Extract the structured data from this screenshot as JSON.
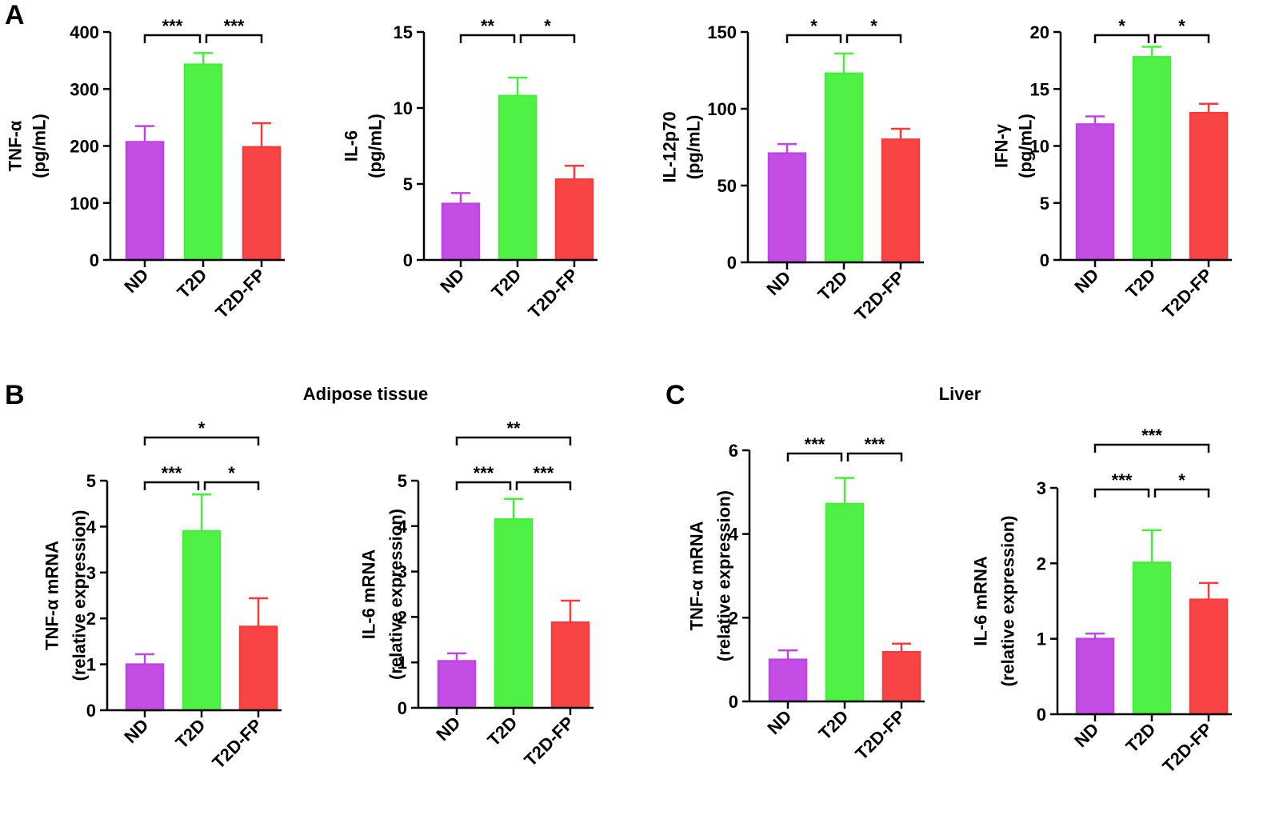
{
  "panels": {
    "A": "A",
    "B": "B",
    "C": "C"
  },
  "section_titles": {
    "adipose": "Adipose tissue",
    "liver": "Liver"
  },
  "colors": {
    "ND": "#c043e4",
    "T2D": "#44f03a",
    "T2D-FP": "#f83a3a",
    "axis": "#000000"
  },
  "chart_data": [
    {
      "type": "bar",
      "panel": "A",
      "categories": [
        "ND",
        "T2D",
        "T2D-FP"
      ],
      "values": [
        207,
        343,
        198
      ],
      "errors": [
        28,
        20,
        42
      ],
      "ylabel_lines": [
        "TNF-α",
        "(pg/mL)"
      ],
      "ylim": [
        0,
        400
      ],
      "yticks": [
        0,
        100,
        200,
        300,
        400
      ],
      "significance": [
        {
          "from": 0,
          "to": 1,
          "label": "***",
          "level": 0
        },
        {
          "from": 1,
          "to": 2,
          "label": "***",
          "level": 0
        }
      ]
    },
    {
      "type": "bar",
      "panel": "A",
      "categories": [
        "ND",
        "T2D",
        "T2D-FP"
      ],
      "values": [
        3.7,
        10.8,
        5.3
      ],
      "errors": [
        0.7,
        1.2,
        0.9
      ],
      "ylabel_lines": [
        "IL-6",
        "(pg/mL)"
      ],
      "ylim": [
        0,
        15
      ],
      "yticks": [
        0,
        5,
        10,
        15
      ],
      "significance": [
        {
          "from": 0,
          "to": 1,
          "label": "**",
          "level": 0
        },
        {
          "from": 1,
          "to": 2,
          "label": "*",
          "level": 0
        }
      ]
    },
    {
      "type": "bar",
      "panel": "A",
      "categories": [
        "ND",
        "T2D",
        "T2D-FP"
      ],
      "values": [
        71,
        123,
        80
      ],
      "errors": [
        6,
        13,
        7
      ],
      "ylabel_lines": [
        "IL-12p70",
        "(pg/mL)"
      ],
      "ylim": [
        0,
        150
      ],
      "yticks": [
        0,
        50,
        100,
        150
      ],
      "significance": [
        {
          "from": 0,
          "to": 1,
          "label": "*",
          "level": 0
        },
        {
          "from": 1,
          "to": 2,
          "label": "*",
          "level": 0
        }
      ]
    },
    {
      "type": "bar",
      "panel": "A",
      "categories": [
        "ND",
        "T2D",
        "T2D-FP"
      ],
      "values": [
        11.9,
        17.8,
        12.9
      ],
      "errors": [
        0.7,
        0.9,
        0.8
      ],
      "ylabel_lines": [
        "IFN-γ",
        "(pg/mL)"
      ],
      "ylim": [
        0,
        20
      ],
      "yticks": [
        0,
        5,
        10,
        15,
        20
      ],
      "significance": [
        {
          "from": 0,
          "to": 1,
          "label": "*",
          "level": 0
        },
        {
          "from": 1,
          "to": 2,
          "label": "*",
          "level": 0
        }
      ]
    },
    {
      "type": "bar",
      "panel": "B",
      "categories": [
        "ND",
        "T2D",
        "T2D-FP"
      ],
      "values": [
        1.0,
        3.9,
        1.82
      ],
      "errors": [
        0.22,
        0.8,
        0.62
      ],
      "ylabel_lines": [
        "TNF-α mRNA",
        "(relative expression)"
      ],
      "ylim": [
        0,
        5
      ],
      "yticks": [
        0,
        1,
        2,
        3,
        4,
        5
      ],
      "significance": [
        {
          "from": 0,
          "to": 1,
          "label": "***",
          "level": 0
        },
        {
          "from": 1,
          "to": 2,
          "label": "*",
          "level": 0
        },
        {
          "from": 0,
          "to": 2,
          "label": "*",
          "level": 1
        }
      ]
    },
    {
      "type": "bar",
      "panel": "B",
      "categories": [
        "ND",
        "T2D",
        "T2D-FP"
      ],
      "values": [
        1.03,
        4.15,
        1.88
      ],
      "errors": [
        0.17,
        0.45,
        0.48
      ],
      "ylabel_lines": [
        "IL-6 mRNA",
        "(relative expression)"
      ],
      "ylim": [
        0,
        5
      ],
      "yticks": [
        0,
        1,
        2,
        3,
        4,
        5
      ],
      "significance": [
        {
          "from": 0,
          "to": 1,
          "label": "***",
          "level": 0
        },
        {
          "from": 1,
          "to": 2,
          "label": "***",
          "level": 0
        },
        {
          "from": 0,
          "to": 2,
          "label": "**",
          "level": 1
        }
      ]
    },
    {
      "type": "bar",
      "panel": "C",
      "categories": [
        "ND",
        "T2D",
        "T2D-FP"
      ],
      "values": [
        1.0,
        4.72,
        1.18
      ],
      "errors": [
        0.22,
        0.62,
        0.2
      ],
      "ylabel_lines": [
        "TNF-α mRNA",
        "(relative expression)"
      ],
      "ylim": [
        0,
        6
      ],
      "yticks": [
        0,
        2,
        4,
        6
      ],
      "significance": [
        {
          "from": 0,
          "to": 1,
          "label": "***",
          "level": 0
        },
        {
          "from": 1,
          "to": 2,
          "label": "***",
          "level": 0
        }
      ]
    },
    {
      "type": "bar",
      "panel": "C",
      "categories": [
        "ND",
        "T2D",
        "T2D-FP"
      ],
      "values": [
        1.0,
        2.01,
        1.52
      ],
      "errors": [
        0.07,
        0.43,
        0.22
      ],
      "ylabel_lines": [
        "IL-6 mRNA",
        "(relative expression)"
      ],
      "ylim": [
        0,
        3
      ],
      "yticks": [
        0,
        1,
        2,
        3
      ],
      "significance": [
        {
          "from": 0,
          "to": 1,
          "label": "***",
          "level": 0
        },
        {
          "from": 1,
          "to": 2,
          "label": "*",
          "level": 0
        },
        {
          "from": 0,
          "to": 2,
          "label": "***",
          "level": 1
        }
      ]
    }
  ]
}
